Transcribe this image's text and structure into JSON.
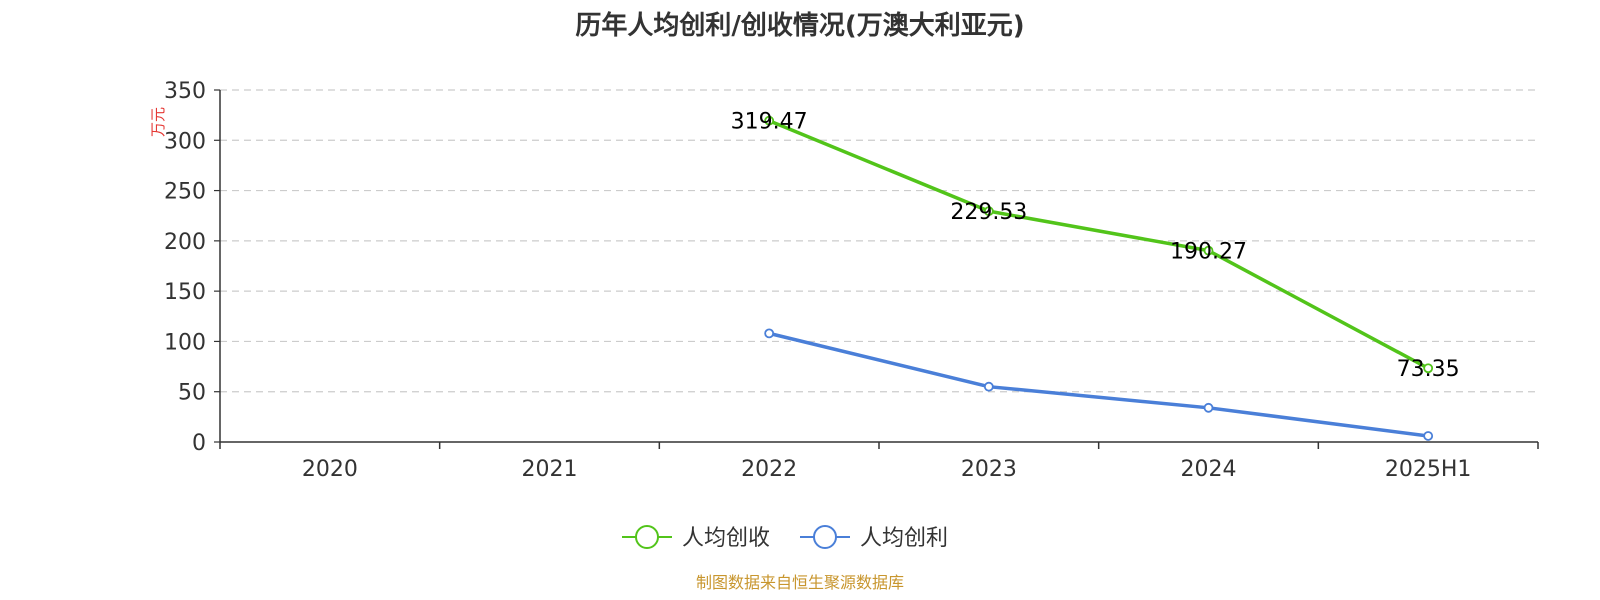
{
  "chart_data": {
    "type": "line",
    "title": "历年人均创利/创收情况(万澳大利亚元)",
    "y_unit": "万元",
    "categories": [
      "2020",
      "2021",
      "2022",
      "2023",
      "2024",
      "2025H1"
    ],
    "ylim": [
      0,
      350
    ],
    "y_ticks": [
      "0",
      "50",
      "100",
      "150",
      "200",
      "250",
      "300",
      "350"
    ],
    "grid": true,
    "legend_position": "bottom-center",
    "series": [
      {
        "name": "人均创收",
        "color": "#52c41a",
        "values": [
          null,
          null,
          319.47,
          229.53,
          190.27,
          73.35
        ],
        "labels": [
          "",
          "",
          "319.47",
          "229.53",
          "190.27",
          "73.35"
        ]
      },
      {
        "name": "人均创利",
        "color": "#4a7fd8",
        "values": [
          null,
          null,
          108,
          55,
          34,
          6
        ],
        "labels": [
          "",
          "",
          "",
          "",
          "",
          ""
        ]
      }
    ]
  },
  "source": "制图数据来自恒生聚源数据库"
}
